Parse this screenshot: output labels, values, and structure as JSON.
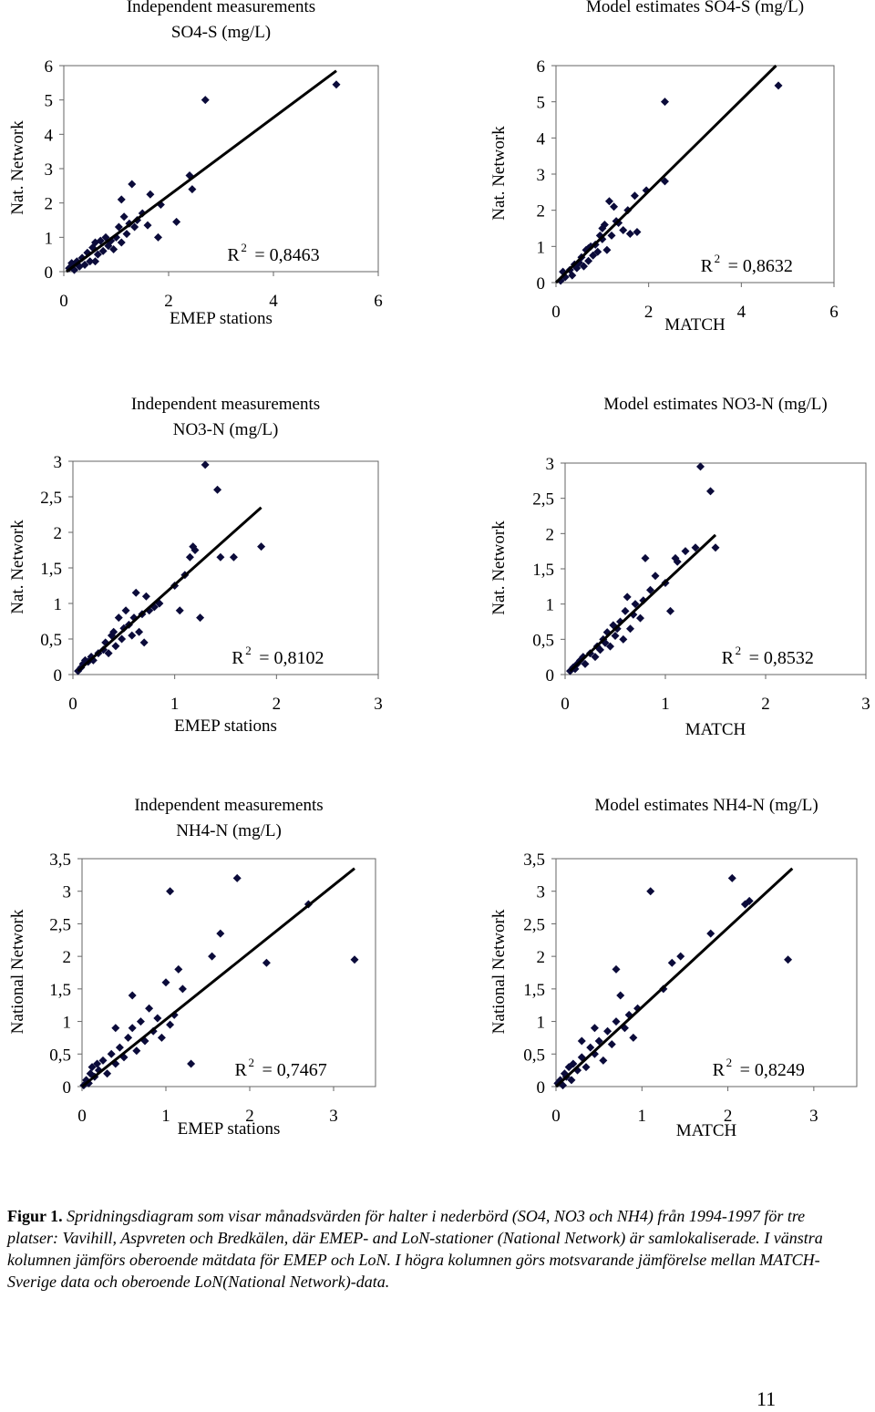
{
  "chart_data": [
    {
      "type": "scatter",
      "title_lines": [
        "Independent measurements",
        "SO4-S (mg/L)"
      ],
      "xlabel": "EMEP stations",
      "ylabel": "Nat. Network",
      "xlim": [
        0,
        6
      ],
      "ylim": [
        0,
        6
      ],
      "xticks": [
        "0",
        "2",
        "4",
        "6"
      ],
      "yticks": [
        "0",
        "1",
        "2",
        "3",
        "4",
        "5",
        "6"
      ],
      "r2_value": "= 0,8463",
      "fit_line": [
        [
          0.05,
          0.0
        ],
        [
          5.2,
          5.85
        ]
      ],
      "points": [
        [
          0.1,
          0.1
        ],
        [
          0.15,
          0.25
        ],
        [
          0.2,
          0.05
        ],
        [
          0.25,
          0.3
        ],
        [
          0.3,
          0.15
        ],
        [
          0.35,
          0.4
        ],
        [
          0.4,
          0.2
        ],
        [
          0.45,
          0.55
        ],
        [
          0.5,
          0.3
        ],
        [
          0.55,
          0.7
        ],
        [
          0.6,
          0.85
        ],
        [
          0.65,
          0.5
        ],
        [
          0.7,
          0.9
        ],
        [
          0.75,
          0.6
        ],
        [
          0.8,
          1.0
        ],
        [
          0.85,
          0.75
        ],
        [
          0.9,
          0.9
        ],
        [
          0.95,
          0.65
        ],
        [
          1.0,
          1.0
        ],
        [
          1.05,
          1.3
        ],
        [
          1.1,
          0.85
        ],
        [
          1.15,
          1.6
        ],
        [
          1.2,
          1.1
        ],
        [
          1.25,
          1.4
        ],
        [
          1.3,
          2.55
        ],
        [
          1.35,
          1.3
        ],
        [
          1.4,
          1.5
        ],
        [
          1.5,
          1.7
        ],
        [
          1.6,
          1.35
        ],
        [
          1.65,
          2.25
        ],
        [
          1.8,
          1.0
        ],
        [
          1.85,
          1.95
        ],
        [
          2.15,
          1.45
        ],
        [
          2.4,
          2.8
        ],
        [
          2.45,
          2.4
        ],
        [
          2.7,
          5.0
        ],
        [
          5.2,
          5.45
        ],
        [
          0.6,
          0.3
        ],
        [
          1.1,
          2.1
        ]
      ]
    },
    {
      "type": "scatter",
      "title_lines": [
        "Model estimates SO4-S (mg/L)"
      ],
      "xlabel": "MATCH",
      "ylabel": "Nat. Network",
      "xlim": [
        0,
        6
      ],
      "ylim": [
        0,
        6
      ],
      "xticks": [
        "0",
        "2",
        "4",
        "6"
      ],
      "yticks": [
        "0",
        "1",
        "2",
        "3",
        "4",
        "5",
        "6"
      ],
      "r2_value": "= 0,8632",
      "fit_line": [
        [
          0.0,
          0.0
        ],
        [
          4.75,
          6.0
        ]
      ],
      "points": [
        [
          0.1,
          0.05
        ],
        [
          0.15,
          0.3
        ],
        [
          0.2,
          0.15
        ],
        [
          0.3,
          0.35
        ],
        [
          0.35,
          0.2
        ],
        [
          0.4,
          0.5
        ],
        [
          0.45,
          0.4
        ],
        [
          0.5,
          0.55
        ],
        [
          0.55,
          0.7
        ],
        [
          0.6,
          0.45
        ],
        [
          0.65,
          0.9
        ],
        [
          0.7,
          0.6
        ],
        [
          0.75,
          1.0
        ],
        [
          0.8,
          0.75
        ],
        [
          0.85,
          1.05
        ],
        [
          0.9,
          0.85
        ],
        [
          0.95,
          1.3
        ],
        [
          1.0,
          1.2
        ],
        [
          1.05,
          1.6
        ],
        [
          1.1,
          0.9
        ],
        [
          1.15,
          2.25
        ],
        [
          1.2,
          1.3
        ],
        [
          1.25,
          2.1
        ],
        [
          1.3,
          1.7
        ],
        [
          1.35,
          1.65
        ],
        [
          1.45,
          1.45
        ],
        [
          1.55,
          2.0
        ],
        [
          1.6,
          1.35
        ],
        [
          1.7,
          2.4
        ],
        [
          1.75,
          1.4
        ],
        [
          1.95,
          2.55
        ],
        [
          2.35,
          2.8
        ],
        [
          2.35,
          5.0
        ],
        [
          4.8,
          5.45
        ],
        [
          0.7,
          0.95
        ],
        [
          1.0,
          1.5
        ]
      ]
    },
    {
      "type": "scatter",
      "title_lines": [
        "Independent measurements",
        "NO3-N (mg/L)"
      ],
      "xlabel": "EMEP stations",
      "ylabel": "Nat. Network",
      "xlim": [
        0,
        3
      ],
      "ylim": [
        0,
        3
      ],
      "xticks": [
        "0",
        "1",
        "2",
        "3"
      ],
      "yticks": [
        "0",
        "0,5",
        "1",
        "1,5",
        "2",
        "2,5",
        "3"
      ],
      "r2_value": "= 0,8102",
      "fit_line": [
        [
          0.05,
          0.05
        ],
        [
          1.85,
          2.35
        ]
      ],
      "points": [
        [
          0.05,
          0.05
        ],
        [
          0.08,
          0.1
        ],
        [
          0.1,
          0.15
        ],
        [
          0.12,
          0.2
        ],
        [
          0.15,
          0.18
        ],
        [
          0.18,
          0.25
        ],
        [
          0.2,
          0.2
        ],
        [
          0.25,
          0.3
        ],
        [
          0.3,
          0.35
        ],
        [
          0.32,
          0.45
        ],
        [
          0.35,
          0.3
        ],
        [
          0.38,
          0.55
        ],
        [
          0.4,
          0.6
        ],
        [
          0.42,
          0.4
        ],
        [
          0.45,
          0.8
        ],
        [
          0.48,
          0.5
        ],
        [
          0.5,
          0.65
        ],
        [
          0.52,
          0.9
        ],
        [
          0.55,
          0.7
        ],
        [
          0.58,
          0.55
        ],
        [
          0.6,
          0.8
        ],
        [
          0.62,
          1.15
        ],
        [
          0.65,
          0.6
        ],
        [
          0.68,
          0.85
        ],
        [
          0.7,
          0.45
        ],
        [
          0.72,
          1.1
        ],
        [
          0.75,
          0.9
        ],
        [
          0.8,
          0.95
        ],
        [
          0.85,
          1.0
        ],
        [
          1.0,
          1.25
        ],
        [
          1.05,
          0.9
        ],
        [
          1.1,
          1.4
        ],
        [
          1.15,
          1.65
        ],
        [
          1.18,
          1.8
        ],
        [
          1.2,
          1.75
        ],
        [
          1.25,
          0.8
        ],
        [
          1.3,
          2.95
        ],
        [
          1.42,
          2.6
        ],
        [
          1.45,
          1.65
        ],
        [
          1.58,
          1.65
        ],
        [
          1.85,
          1.8
        ]
      ]
    },
    {
      "type": "scatter",
      "title_lines": [
        "Model estimates NO3-N (mg/L)"
      ],
      "xlabel": "MATCH",
      "ylabel": "Nat. Network",
      "xlim": [
        0,
        3
      ],
      "ylim": [
        0,
        3
      ],
      "xticks": [
        "0",
        "1",
        "2",
        "3"
      ],
      "yticks": [
        "0",
        "0,5",
        "1",
        "1,5",
        "2",
        "2,5",
        "3"
      ],
      "r2_value": "= 0,8532",
      "fit_line": [
        [
          0.05,
          0.05
        ],
        [
          1.5,
          1.98
        ]
      ],
      "points": [
        [
          0.05,
          0.05
        ],
        [
          0.08,
          0.1
        ],
        [
          0.1,
          0.08
        ],
        [
          0.12,
          0.15
        ],
        [
          0.15,
          0.2
        ],
        [
          0.18,
          0.25
        ],
        [
          0.2,
          0.15
        ],
        [
          0.25,
          0.3
        ],
        [
          0.3,
          0.25
        ],
        [
          0.32,
          0.4
        ],
        [
          0.35,
          0.35
        ],
        [
          0.38,
          0.5
        ],
        [
          0.4,
          0.45
        ],
        [
          0.42,
          0.6
        ],
        [
          0.45,
          0.4
        ],
        [
          0.48,
          0.7
        ],
        [
          0.5,
          0.55
        ],
        [
          0.52,
          0.65
        ],
        [
          0.55,
          0.75
        ],
        [
          0.58,
          0.5
        ],
        [
          0.6,
          0.9
        ],
        [
          0.62,
          1.1
        ],
        [
          0.65,
          0.65
        ],
        [
          0.68,
          0.85
        ],
        [
          0.7,
          1.0
        ],
        [
          0.75,
          0.8
        ],
        [
          0.78,
          1.05
        ],
        [
          0.8,
          1.65
        ],
        [
          0.85,
          1.2
        ],
        [
          0.9,
          1.4
        ],
        [
          1.0,
          1.3
        ],
        [
          1.05,
          0.9
        ],
        [
          1.1,
          1.65
        ],
        [
          1.12,
          1.6
        ],
        [
          1.2,
          1.75
        ],
        [
          1.3,
          1.8
        ],
        [
          1.35,
          2.95
        ],
        [
          1.45,
          2.6
        ],
        [
          1.5,
          1.8
        ]
      ]
    },
    {
      "type": "scatter",
      "title_lines": [
        "Independent measurements",
        "NH4-N (mg/L)"
      ],
      "xlabel": "EMEP stations",
      "ylabel": "National Network",
      "xlim": [
        0,
        3.5
      ],
      "ylim": [
        0,
        3.5
      ],
      "xticks": [
        "0",
        "1",
        "2",
        "3"
      ],
      "yticks": [
        "0",
        "0,5",
        "1",
        "1,5",
        "2",
        "2,5",
        "3",
        "3,5"
      ],
      "r2_value": "= 0,7467",
      "fit_line": [
        [
          0.0,
          0.0
        ],
        [
          3.25,
          3.35
        ]
      ],
      "points": [
        [
          0.02,
          0.02
        ],
        [
          0.05,
          0.1
        ],
        [
          0.08,
          0.05
        ],
        [
          0.1,
          0.2
        ],
        [
          0.12,
          0.3
        ],
        [
          0.15,
          0.15
        ],
        [
          0.18,
          0.35
        ],
        [
          0.2,
          0.25
        ],
        [
          0.25,
          0.4
        ],
        [
          0.3,
          0.2
        ],
        [
          0.35,
          0.5
        ],
        [
          0.4,
          0.35
        ],
        [
          0.45,
          0.6
        ],
        [
          0.5,
          0.45
        ],
        [
          0.55,
          0.75
        ],
        [
          0.6,
          0.9
        ],
        [
          0.65,
          0.55
        ],
        [
          0.7,
          1.0
        ],
        [
          0.75,
          0.7
        ],
        [
          0.8,
          1.2
        ],
        [
          0.85,
          0.85
        ],
        [
          0.9,
          1.05
        ],
        [
          0.95,
          0.75
        ],
        [
          1.0,
          1.6
        ],
        [
          1.05,
          0.95
        ],
        [
          1.1,
          1.1
        ],
        [
          1.15,
          1.8
        ],
        [
          1.2,
          1.5
        ],
        [
          1.3,
          0.35
        ],
        [
          1.05,
          3.0
        ],
        [
          1.55,
          2.0
        ],
        [
          1.65,
          2.35
        ],
        [
          1.85,
          3.2
        ],
        [
          2.2,
          1.9
        ],
        [
          2.7,
          2.8
        ],
        [
          3.25,
          1.95
        ],
        [
          0.6,
          1.4
        ],
        [
          0.4,
          0.9
        ]
      ]
    },
    {
      "type": "scatter",
      "title_lines": [
        "Model estimates NH4-N (mg/L)"
      ],
      "xlabel": "MATCH",
      "ylabel": "National Network",
      "xlim": [
        0,
        3.5
      ],
      "ylim": [
        0,
        3.5
      ],
      "xticks": [
        "0",
        "1",
        "2",
        "3"
      ],
      "yticks": [
        "0",
        "0,5",
        "1",
        "1,5",
        "2",
        "2,5",
        "3",
        "3,5"
      ],
      "r2_value": "= 0,8249",
      "fit_line": [
        [
          0.0,
          0.0
        ],
        [
          2.75,
          3.35
        ]
      ],
      "points": [
        [
          0.02,
          0.05
        ],
        [
          0.05,
          0.1
        ],
        [
          0.08,
          0.02
        ],
        [
          0.1,
          0.2
        ],
        [
          0.12,
          0.15
        ],
        [
          0.15,
          0.3
        ],
        [
          0.18,
          0.1
        ],
        [
          0.2,
          0.35
        ],
        [
          0.25,
          0.25
        ],
        [
          0.3,
          0.45
        ],
        [
          0.35,
          0.3
        ],
        [
          0.4,
          0.6
        ],
        [
          0.45,
          0.5
        ],
        [
          0.5,
          0.7
        ],
        [
          0.55,
          0.4
        ],
        [
          0.6,
          0.85
        ],
        [
          0.65,
          0.65
        ],
        [
          0.7,
          1.0
        ],
        [
          0.75,
          1.4
        ],
        [
          0.8,
          0.9
        ],
        [
          0.85,
          1.1
        ],
        [
          0.9,
          0.75
        ],
        [
          0.95,
          1.2
        ],
        [
          0.7,
          1.8
        ],
        [
          1.1,
          3.0
        ],
        [
          1.25,
          1.5
        ],
        [
          1.35,
          1.9
        ],
        [
          1.45,
          2.0
        ],
        [
          1.8,
          2.35
        ],
        [
          2.05,
          3.2
        ],
        [
          2.2,
          2.8
        ],
        [
          2.25,
          2.85
        ],
        [
          2.7,
          1.95
        ],
        [
          0.3,
          0.7
        ],
        [
          0.45,
          0.9
        ]
      ]
    }
  ],
  "caption": {
    "lead": "Figur 1.",
    "text": "Spridningsdiagram som visar månadsvärden för halter i nederbörd (SO4, NO3 och NH4) från 1994-1997 för tre platser: Vavihill, Aspvreten och Bredkälen, där EMEP- and LoN-stationer (National Network) är samlokaliserade. I vänstra kolumnen jämförs oberoende mätdata för EMEP och LoN. I högra kolumnen görs motsvarande jämförelse mellan MATCH-Sverige data och oberoende LoN(National Network)-data."
  },
  "page_number": "11"
}
